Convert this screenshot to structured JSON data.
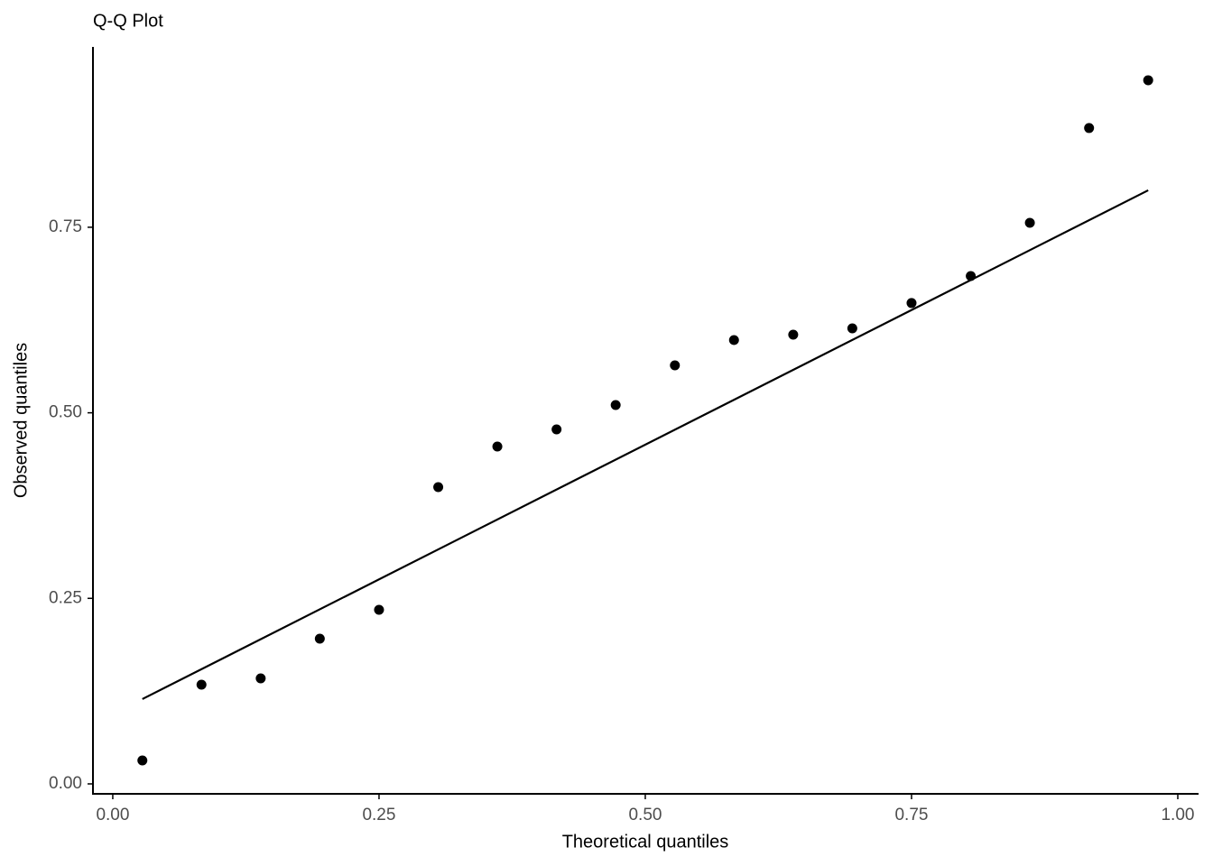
{
  "chart_data": {
    "type": "scatter",
    "title": "Q-Q Plot",
    "x_label": "Theoretical quantiles",
    "y_label": "Observed quantiles",
    "x": [
      0.0278,
      0.0833,
      0.1389,
      0.1944,
      0.25,
      0.3056,
      0.3611,
      0.4167,
      0.4722,
      0.5278,
      0.5833,
      0.6389,
      0.6944,
      0.75,
      0.8056,
      0.8611,
      0.9167,
      0.9722
    ],
    "series": [
      {
        "color": "#000000",
        "values": [
          0.0316,
          0.1337,
          0.1422,
          0.1957,
          0.2346,
          0.3999,
          0.4546,
          0.4777,
          0.5105,
          0.564,
          0.598,
          0.6053,
          0.6138,
          0.6479,
          0.6843,
          0.756,
          0.8837,
          0.9481
        ]
      }
    ],
    "line": {
      "color": "#000000",
      "x": [
        0.0278,
        0.9722
      ],
      "values": [
        0.1143,
        0.7998
      ]
    },
    "xlim": [
      -0.0186,
      1.0195
    ],
    "ylim": [
      -0.0134,
      0.993
    ],
    "xticks": [
      {
        "value": 0,
        "label": "0.00"
      },
      {
        "value": 0.25,
        "label": "0.25"
      },
      {
        "value": 0.5,
        "label": "0.50"
      },
      {
        "value": 0.75,
        "label": "0.75"
      },
      {
        "value": 1,
        "label": "1.00"
      }
    ],
    "yticks": [
      {
        "value": 0,
        "label": "0.00"
      },
      {
        "value": 0.25,
        "label": "0.25"
      },
      {
        "value": 0.5,
        "label": "0.50"
      },
      {
        "value": 0.75,
        "label": "0.75"
      }
    ],
    "grid": false
  }
}
